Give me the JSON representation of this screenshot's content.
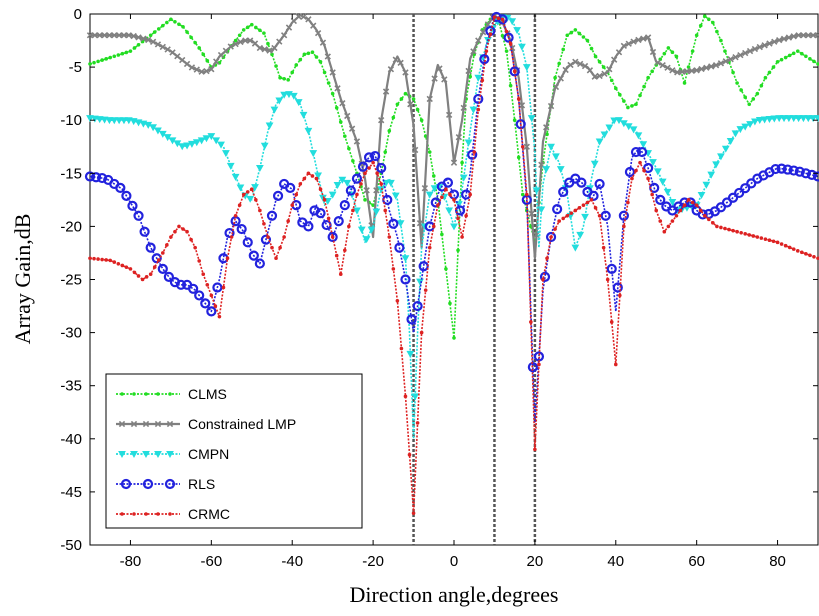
{
  "chart_data": {
    "type": "line",
    "title": "",
    "xlabel": "Direction angle,degrees",
    "ylabel": "Array Gain,dB",
    "xlim": [
      -90,
      90
    ],
    "ylim": [
      -50,
      0
    ],
    "xticks": [
      -80,
      -60,
      -40,
      -20,
      0,
      20,
      40,
      60,
      80
    ],
    "yticks": [
      0,
      -5,
      -10,
      -15,
      -20,
      -25,
      -30,
      -35,
      -40,
      -45,
      -50
    ],
    "grid": false,
    "legend_position": "bottom-left",
    "reference_lines_x": [
      -10,
      10,
      20
    ],
    "reference_line_color": "#555555",
    "series": [
      {
        "name": "CLMS",
        "color": "#22dd22",
        "line": "dotted",
        "marker": "dot",
        "x": [
          -90,
          -80,
          -75,
          -70,
          -67,
          -63,
          -60,
          -58,
          -55,
          -52,
          -50,
          -47,
          -45,
          -43,
          -41,
          -39,
          -37,
          -35,
          -33,
          -30,
          -27,
          -24,
          -22,
          -20,
          -18,
          -16,
          -14,
          -12,
          -10,
          -8,
          -6,
          -4,
          -2,
          0,
          2,
          3,
          5,
          7,
          9,
          10,
          11,
          13,
          15,
          17,
          19,
          20,
          22,
          25,
          28,
          30,
          33,
          35,
          38,
          40,
          43,
          45,
          48,
          50,
          53,
          55,
          57,
          60,
          62,
          64,
          66,
          70,
          73,
          75,
          77,
          80,
          85,
          90
        ],
        "y": [
          -4.7,
          -3.5,
          -2.0,
          -0.5,
          -1.2,
          -3.2,
          -5.0,
          -4.6,
          -3.0,
          -1.5,
          -1.0,
          -1.8,
          -3.8,
          -6.0,
          -6.2,
          -4.8,
          -3.8,
          -3.6,
          -4.5,
          -7.5,
          -11.5,
          -15.0,
          -17.5,
          -18.0,
          -15.0,
          -11.0,
          -8.5,
          -7.5,
          -8.0,
          -10.0,
          -13.0,
          -17.5,
          -24.0,
          -30.5,
          -14.0,
          -8.0,
          -3.8,
          -1.5,
          -0.5,
          -0.3,
          -0.6,
          -3.5,
          -10.0,
          -17.0,
          -20.0,
          -21.5,
          -14.0,
          -6.0,
          -2.0,
          -1.5,
          -2.5,
          -4.0,
          -5.5,
          -7.0,
          -8.8,
          -8.5,
          -6.0,
          -4.8,
          -3.2,
          -4.0,
          -6.5,
          -2.0,
          -0.2,
          -0.8,
          -2.5,
          -6.5,
          -8.5,
          -7.5,
          -6.0,
          -4.5,
          -3.5,
          -4.7
        ]
      },
      {
        "name": "Constrained LMP",
        "color": "#808080",
        "line": "solid",
        "marker": "x",
        "x": [
          -90,
          -85,
          -80,
          -75,
          -70,
          -65,
          -62,
          -60,
          -58,
          -55,
          -52,
          -50,
          -48,
          -45,
          -42,
          -40,
          -38,
          -36,
          -34,
          -32,
          -30,
          -28,
          -26,
          -24,
          -22,
          -20,
          -18,
          -16,
          -14,
          -12,
          -10,
          -8,
          -6,
          -4,
          -2,
          0,
          2,
          4,
          6,
          8,
          10,
          12,
          14,
          16,
          18,
          20,
          22,
          25,
          28,
          30,
          33,
          35,
          38,
          40,
          42,
          45,
          48,
          50,
          55,
          60,
          65,
          70,
          75,
          80,
          85,
          90
        ],
        "y": [
          -2.0,
          -2.0,
          -2.0,
          -2.5,
          -3.5,
          -5.0,
          -5.5,
          -5.2,
          -4.0,
          -3.0,
          -2.5,
          -2.5,
          -3.2,
          -3.5,
          -2.0,
          -0.8,
          -0.1,
          -0.5,
          -1.5,
          -3.0,
          -5.5,
          -8.0,
          -10.0,
          -12.0,
          -15.5,
          -21.0,
          -10.0,
          -5.5,
          -4.0,
          -5.5,
          -10.5,
          -22.0,
          -8.0,
          -4.8,
          -6.5,
          -14.0,
          -10.0,
          -4.2,
          -2.5,
          -1.2,
          -0.1,
          -0.8,
          -2.5,
          -6.0,
          -12.5,
          -23.0,
          -12.0,
          -7.0,
          -5.0,
          -4.5,
          -5.0,
          -6.0,
          -5.5,
          -4.0,
          -3.0,
          -2.5,
          -2.2,
          -4.5,
          -5.5,
          -5.3,
          -4.8,
          -4.0,
          -3.2,
          -2.5,
          -2.0,
          -2.0
        ]
      },
      {
        "name": "CMPN",
        "color": "#22dddd",
        "line": "dotted",
        "marker": "triangle-down",
        "x": [
          -90,
          -85,
          -80,
          -75,
          -70,
          -67,
          -63,
          -60,
          -57,
          -55,
          -52,
          -50,
          -48,
          -46,
          -44,
          -42,
          -40,
          -38,
          -36,
          -34,
          -32,
          -30,
          -28,
          -26,
          -24,
          -22,
          -20,
          -18,
          -16,
          -14,
          -12,
          -11,
          -10,
          -9,
          -8,
          -6,
          -4,
          -2,
          0,
          2,
          4,
          6,
          8,
          10,
          12,
          14,
          16,
          18,
          20,
          21,
          22,
          24,
          26,
          28,
          30,
          32,
          34,
          36,
          40,
          45,
          50,
          55,
          60,
          65,
          70,
          75,
          80,
          85,
          90
        ],
        "y": [
          -9.8,
          -10.0,
          -10.0,
          -10.5,
          -11.8,
          -12.5,
          -12.0,
          -11.5,
          -12.5,
          -14.5,
          -17.0,
          -17.5,
          -14.5,
          -11.0,
          -8.5,
          -7.6,
          -7.5,
          -8.5,
          -11.0,
          -14.5,
          -18.0,
          -17.0,
          -15.5,
          -16.0,
          -18.5,
          -21.5,
          -20.0,
          -16.5,
          -15.5,
          -17.5,
          -23.0,
          -30.0,
          -40.0,
          -30.0,
          -22.0,
          -17.0,
          -16.0,
          -17.5,
          -20.0,
          -16.5,
          -11.0,
          -6.0,
          -2.8,
          -1.0,
          -0.3,
          -0.4,
          -1.8,
          -5.0,
          -13.0,
          -22.0,
          -16.0,
          -12.5,
          -14.0,
          -17.0,
          -22.0,
          -20.0,
          -15.5,
          -12.0,
          -9.8,
          -11.0,
          -14.5,
          -18.5,
          -18.0,
          -14.0,
          -11.0,
          -10.0,
          -9.8,
          -9.8,
          -9.8
        ]
      },
      {
        "name": "RLS",
        "color": "#2222dd",
        "line": "dotted",
        "marker": "circle",
        "x": [
          -90,
          -86,
          -82,
          -78,
          -75,
          -72,
          -70,
          -68,
          -66,
          -64,
          -62,
          -60,
          -58,
          -56,
          -54,
          -52,
          -50,
          -48,
          -46,
          -44,
          -42,
          -40,
          -38,
          -36,
          -34,
          -32,
          -30,
          -28,
          -26,
          -24,
          -22,
          -20,
          -18,
          -16,
          -14,
          -12,
          -10,
          -8,
          -6,
          -4,
          -2,
          0,
          2,
          4,
          6,
          8,
          10,
          12,
          14,
          16,
          18,
          20,
          22,
          24,
          26,
          28,
          30,
          32,
          34,
          36,
          38,
          40,
          42,
          44,
          46,
          48,
          50,
          52,
          54,
          56,
          58,
          60,
          62,
          65,
          70,
          75,
          80,
          85,
          90
        ],
        "y": [
          -15.3,
          -15.5,
          -16.5,
          -19.0,
          -22.0,
          -24.0,
          -25.0,
          -25.5,
          -25.5,
          -26.0,
          -27.0,
          -28.0,
          -25.0,
          -21.0,
          -19.5,
          -20.5,
          -22.5,
          -23.5,
          -20.5,
          -17.5,
          -16.0,
          -16.5,
          -19.5,
          -20.0,
          -18.0,
          -19.5,
          -21.0,
          -19.0,
          -17.0,
          -15.5,
          -14.0,
          -13.0,
          -14.5,
          -18.5,
          -21.0,
          -25.0,
          -30.0,
          -25.0,
          -20.0,
          -17.0,
          -15.5,
          -17.0,
          -19.0,
          -15.0,
          -8.0,
          -3.0,
          -0.2,
          -0.5,
          -2.8,
          -8.0,
          -17.5,
          -38.5,
          -26.0,
          -21.0,
          -17.5,
          -16.0,
          -15.5,
          -16.0,
          -17.5,
          -16.0,
          -20.0,
          -28.0,
          -19.0,
          -13.5,
          -12.5,
          -14.5,
          -17.0,
          -18.0,
          -18.5,
          -18.0,
          -17.5,
          -18.5,
          -19.0,
          -18.5,
          -17.0,
          -15.5,
          -14.5,
          -14.8,
          -15.3
        ]
      },
      {
        "name": "CRMC",
        "color": "#dd2222",
        "line": "dotted",
        "marker": "dot",
        "x": [
          -90,
          -85,
          -80,
          -77,
          -75,
          -72,
          -70,
          -68,
          -66,
          -64,
          -62,
          -60,
          -58,
          -56,
          -54,
          -52,
          -50,
          -48,
          -46,
          -44,
          -42,
          -40,
          -38,
          -36,
          -34,
          -32,
          -30,
          -28,
          -26,
          -24,
          -22,
          -20,
          -18,
          -16,
          -14,
          -12,
          -10,
          -8,
          -6,
          -4,
          -2,
          0,
          2,
          4,
          6,
          8,
          10,
          12,
          14,
          16,
          18,
          20,
          22,
          24,
          26,
          28,
          30,
          32,
          34,
          36,
          38,
          40,
          42,
          44,
          46,
          48,
          50,
          52,
          54,
          56,
          58,
          60,
          62,
          65,
          70,
          75,
          80,
          85,
          90
        ],
        "y": [
          -23.0,
          -23.2,
          -24.0,
          -25.0,
          -24.5,
          -22.5,
          -21.0,
          -20.0,
          -20.5,
          -22.0,
          -24.5,
          -26.5,
          -28.5,
          -23.0,
          -19.0,
          -17.0,
          -16.5,
          -18.5,
          -21.0,
          -23.0,
          -21.0,
          -18.0,
          -16.0,
          -15.0,
          -15.5,
          -17.5,
          -21.0,
          -24.5,
          -20.0,
          -17.0,
          -15.0,
          -14.0,
          -16.0,
          -21.0,
          -27.0,
          -36.0,
          -47.0,
          -30.0,
          -22.0,
          -18.0,
          -16.5,
          -17.5,
          -21.0,
          -17.0,
          -9.0,
          -3.5,
          -0.3,
          -0.5,
          -2.8,
          -8.0,
          -17.0,
          -41.0,
          -25.0,
          -21.0,
          -19.5,
          -19.0,
          -18.5,
          -18.0,
          -17.5,
          -19.0,
          -25.0,
          -33.0,
          -20.0,
          -15.5,
          -14.0,
          -15.5,
          -18.5,
          -20.5,
          -19.5,
          -18.5,
          -17.5,
          -18.0,
          -19.0,
          -20.0,
          -20.5,
          -21.0,
          -21.5,
          -22.3,
          -23.0
        ]
      }
    ]
  }
}
